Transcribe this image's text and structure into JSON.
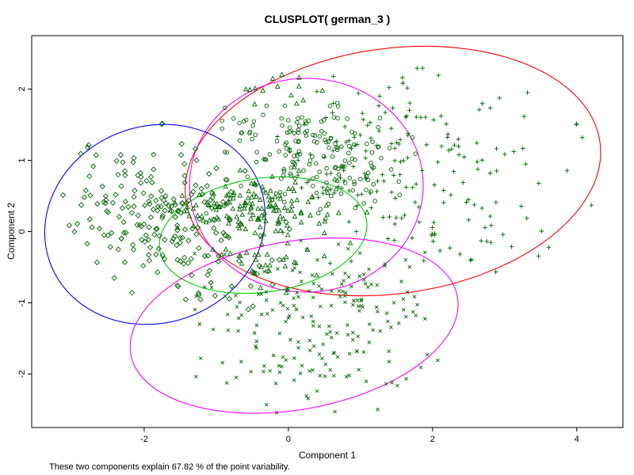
{
  "chart_data": {
    "type": "scatter",
    "title": "CLUSPLOT( german_3 )",
    "xlabel": "Component 1",
    "ylabel": "Component 2",
    "sub": "These two components explain 67.82 % of the point variability.",
    "xlim": [
      -3.56,
      4.64
    ],
    "ylim": [
      -2.75,
      2.75
    ],
    "xticks": [
      -2,
      0,
      2,
      4
    ],
    "yticks": [
      -2,
      -1,
      0,
      1,
      2
    ],
    "grid": false,
    "legend": "none",
    "point_color": "#006400",
    "axis_color": "#000000",
    "seed": 20240601,
    "clusters": [
      {
        "name": "cluster-1-diamonds",
        "symbol": "diamond",
        "clip": [
          -3.3,
          0.35,
          -1.45,
          1.6
        ],
        "blobs": [
          {
            "center": [
              -1.75,
              0.3
            ],
            "sd": [
              0.62,
              0.45
            ],
            "count": 185
          },
          {
            "center": [
              -1.05,
              -0.55
            ],
            "sd": [
              0.5,
              0.35
            ],
            "count": 30
          }
        ]
      },
      {
        "name": "cluster-2-triangles",
        "symbol": "triangle",
        "clip": [
          -1.8,
          1.15,
          -0.95,
          2.25
        ],
        "blobs": [
          {
            "center": [
              -0.45,
              0.32
            ],
            "sd": [
              0.52,
              0.2
            ],
            "count": 150
          },
          {
            "center": [
              -0.1,
              1.95
            ],
            "sd": [
              0.32,
              0.14
            ],
            "count": 14
          },
          {
            "center": [
              -0.25,
              -0.3
            ],
            "sd": [
              0.45,
              0.22
            ],
            "count": 30
          }
        ]
      },
      {
        "name": "cluster-3-circles",
        "symbol": "circle",
        "clip": [
          -1.45,
          1.95,
          -0.25,
          2.1
        ],
        "blobs": [
          {
            "center": [
              0.35,
              1.05
            ],
            "sd": [
              0.62,
              0.38
            ],
            "count": 150
          },
          {
            "center": [
              0.0,
              1.5
            ],
            "sd": [
              0.55,
              0.15
            ],
            "count": 25
          }
        ]
      },
      {
        "name": "cluster-4-plus",
        "symbol": "plus",
        "clip": [
          -0.45,
          4.3,
          -0.75,
          2.5
        ],
        "blobs": [
          {
            "center": [
              1.45,
              1.0
            ],
            "sd": [
              0.85,
              0.62
            ],
            "count": 165
          },
          {
            "center": [
              2.5,
              0.15
            ],
            "sd": [
              0.6,
              0.38
            ],
            "count": 28
          },
          {
            "center": [
              3.85,
              1.15
            ],
            "sd": [
              0.3,
              0.5
            ],
            "count": 7
          }
        ]
      },
      {
        "name": "cluster-5-crosses",
        "symbol": "cross",
        "clip": [
          -2.05,
          2.4,
          -2.6,
          -0.05
        ],
        "blobs": [
          {
            "center": [
              0.55,
              -1.1
            ],
            "sd": [
              0.78,
              0.5
            ],
            "count": 165
          },
          {
            "center": [
              0.15,
              -2.0
            ],
            "sd": [
              0.65,
              0.28
            ],
            "count": 35
          }
        ]
      }
    ],
    "ellipses": [
      {
        "name": "ellipse-red",
        "color": "#ff0000",
        "center": [
          1.45,
          0.85
        ],
        "rx": 2.9,
        "ry": 1.72,
        "angle": 8
      },
      {
        "name": "ellipse-magenta-upper",
        "color": "#ff00ff",
        "center": [
          0.25,
          0.65
        ],
        "rx": 1.62,
        "ry": 1.5,
        "angle": 0
      },
      {
        "name": "ellipse-blue",
        "color": "#0000ff",
        "center": [
          -1.85,
          0.1
        ],
        "rx": 1.55,
        "ry": 1.38,
        "angle": 20
      },
      {
        "name": "ellipse-green",
        "color": "#00cd00",
        "center": [
          -0.35,
          -0.05
        ],
        "rx": 1.45,
        "ry": 0.8,
        "angle": 8
      },
      {
        "name": "ellipse-magenta-lower",
        "color": "#ff00ff",
        "center": [
          0.08,
          -1.32
        ],
        "rx": 2.3,
        "ry": 1.18,
        "angle": 10
      }
    ]
  }
}
